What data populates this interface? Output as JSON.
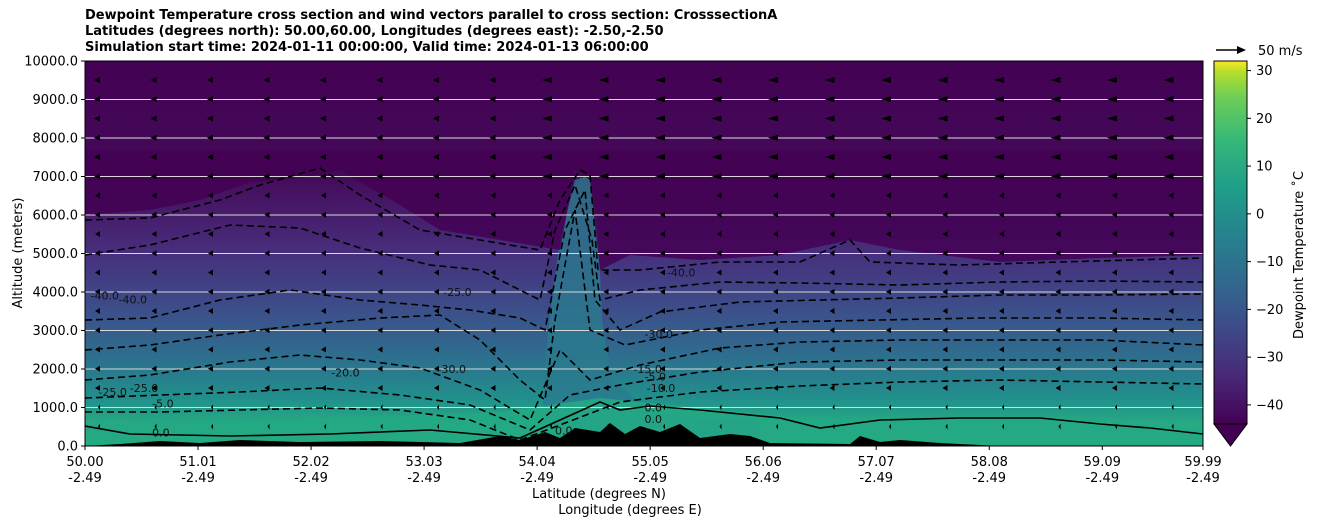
{
  "titles": [
    "Dewpoint Temperature cross section and wind vectors parallel to cross section: CrosssectionA",
    "Latitudes (degrees north): 50.00,60.00, Longitudes (degrees east): -2.50,-2.50",
    "Simulation start time: 2024-01-11 00:00:00, Valid time: 2024-01-13 06:00:00"
  ],
  "chart_data": {
    "type": "heatmap",
    "ylabel": "Altitude (meters)",
    "xlabel_lat": "Latitude (degrees N)",
    "xlabel_lon": "Longitude (degrees E)",
    "ylim": [
      0,
      10000
    ],
    "y_ticks": [
      "0.0",
      "1000.0",
      "2000.0",
      "3000.0",
      "4000.0",
      "5000.0",
      "6000.0",
      "7000.0",
      "8000.0",
      "9000.0",
      "10000.0"
    ],
    "x_ticks_lat": [
      "50.00",
      "51.01",
      "52.02",
      "53.03",
      "54.04",
      "55.05",
      "56.06",
      "57.07",
      "58.08",
      "59.09",
      "59.99"
    ],
    "x_ticks_lon": [
      "-2.49",
      "-2.49",
      "-2.49",
      "-2.49",
      "-2.49",
      "-2.49",
      "-2.49",
      "-2.49",
      "-2.49",
      "-2.49",
      "-2.49"
    ],
    "grid": "horizontal",
    "colorbar": {
      "label": "Dewpoint Temperature ˚C",
      "range": [
        -44,
        32
      ],
      "ticks": [
        "30",
        "20",
        "10",
        "0",
        "−10",
        "−20",
        "−30",
        "−40"
      ],
      "extend": "min"
    },
    "wind_reference": "50 m/s",
    "contour_labels": [
      {
        "text": "-40.0",
        "lat": 50.05,
        "alt": 3800
      },
      {
        "text": "-40.0",
        "lat": 50.3,
        "alt": 3700
      },
      {
        "text": "-25.0",
        "lat": 53.2,
        "alt": 3900
      },
      {
        "text": "-20.0",
        "lat": 52.2,
        "alt": 1800
      },
      {
        "text": "-30.0",
        "lat": 53.15,
        "alt": 1900
      },
      {
        "text": "-25.0",
        "lat": 50.12,
        "alt": 1300
      },
      {
        "text": "-25.0",
        "lat": 50.4,
        "alt": 1400
      },
      {
        "text": "-5.0",
        "lat": 50.6,
        "alt": 1000
      },
      {
        "text": "0.0",
        "lat": 50.6,
        "alt": 250
      },
      {
        "text": "0.0",
        "lat": 54.2,
        "alt": 300
      },
      {
        "text": "0.0",
        "lat": 55.0,
        "alt": 900
      },
      {
        "text": "0.0",
        "lat": 55.0,
        "alt": 600
      },
      {
        "text": "-40.0",
        "lat": 55.2,
        "alt": 4400
      },
      {
        "text": "-30.0",
        "lat": 55.0,
        "alt": 2800
      },
      {
        "text": "-15.0",
        "lat": 54.9,
        "alt": 1900
      },
      {
        "text": "-5.0",
        "lat": 55.0,
        "alt": 1700
      },
      {
        "text": "-10.0",
        "lat": 55.02,
        "alt": 1400
      }
    ]
  }
}
